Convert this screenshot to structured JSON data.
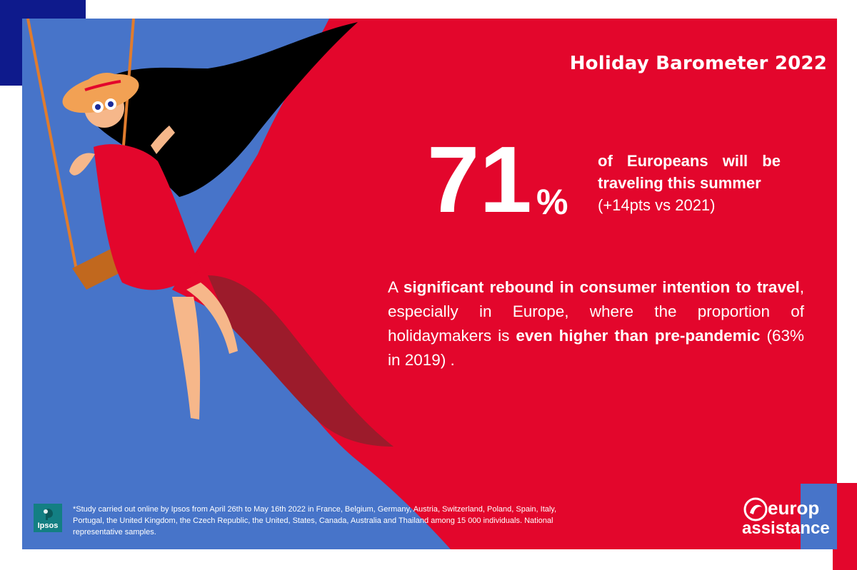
{
  "header": {
    "title": "Holiday Barometer 2022"
  },
  "stat": {
    "number": "71",
    "percent": "%",
    "line1_words": [
      "of",
      "Europeans",
      "will",
      "be"
    ],
    "line2": "traveling this summer",
    "line3": "(+14pts vs 2021)"
  },
  "rebound": {
    "part1": "A ",
    "bold1": "significant rebound in consumer intention to travel",
    "part2": ", especially in Europe, where the proportion of holidaymakers is ",
    "bold2": "even higher than pre-pandemic",
    "part3": " (63% in 2019) ."
  },
  "footnote": "*Study carried out online by Ipsos from April 26th to May 16th 2022 in France, Belgium, Germany, Austria, Switzerland, Poland, Spain, Italy, Portugal, the United Kingdom, the Czech Republic, the United, States, Canada, Australia and Thailand among 15 000 individuals. National representative samples.",
  "logos": {
    "ipsos": "Ipsos",
    "europ_line1": "europ",
    "europ_line2": "assistance"
  },
  "colors": {
    "background_blue": "#4774c9",
    "accent_red": "#e3062c",
    "dark_red": "#9c1b2b",
    "navy": "#0e1a8c",
    "skin": "#f6b78a",
    "hat": "#f2a154",
    "rope": "#e07c2e",
    "ipsos_teal": "#137f83"
  }
}
